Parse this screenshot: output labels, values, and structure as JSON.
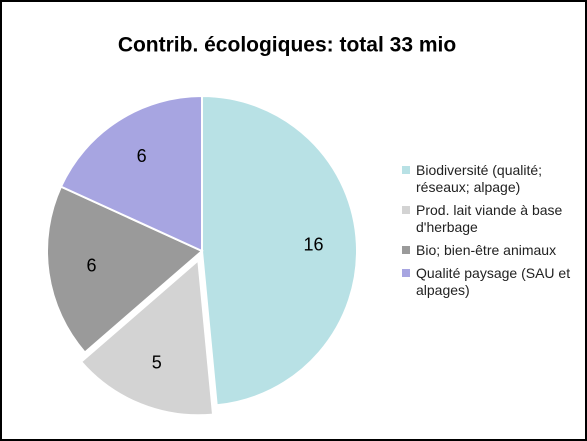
{
  "chart_data": {
    "type": "pie",
    "title": "Contrib. écologiques: total 33 mio",
    "categories": [
      "Biodiversité (qualité; réseaux; alpage)",
      "Prod. lait viande à base d'herbage",
      "Bio; bien-être animaux",
      "Qualité paysage (SAU et alpages)"
    ],
    "values": [
      16,
      5,
      6,
      6
    ],
    "colors": [
      "#b8e1e5",
      "#d3d3d3",
      "#9a9a9a",
      "#a7a5e1"
    ],
    "exploded": [
      false,
      true,
      false,
      false
    ],
    "legend": "right"
  }
}
